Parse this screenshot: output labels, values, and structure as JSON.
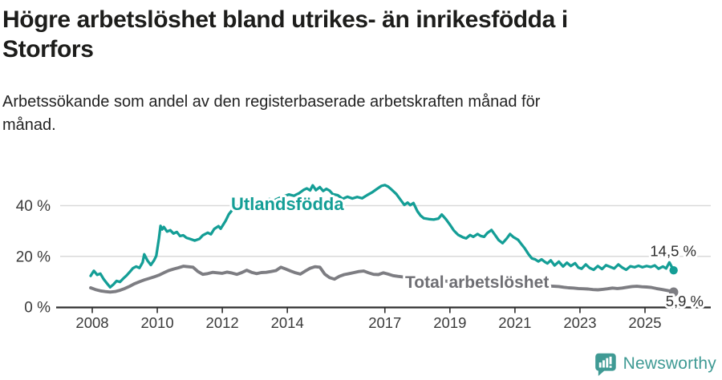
{
  "chart_data": {
    "type": "line",
    "title": "Högre arbetslöshet bland utrikes- än inrikesfödda i\nStorfors",
    "subtitle": "Arbetssökande som andel av den registerbaserade arbetskraften månad för\nmånad.",
    "x_unit": "year (monthly observations)",
    "xlim": [
      2007.7,
      2026.3
    ],
    "ylim": [
      0,
      50
    ],
    "grid": "horizontal-only",
    "legend_position": "inline-labels",
    "xticks": [
      {
        "value": 2008,
        "label": "2008"
      },
      {
        "value": 2010,
        "label": "2010"
      },
      {
        "value": 2012,
        "label": "2012"
      },
      {
        "value": 2014,
        "label": "2014"
      },
      {
        "value": 2017,
        "label": "2017"
      },
      {
        "value": 2019,
        "label": "2019"
      },
      {
        "value": 2021,
        "label": "2021"
      },
      {
        "value": 2023,
        "label": "2023"
      },
      {
        "value": 2025,
        "label": "2025"
      }
    ],
    "yticks": [
      {
        "value": 0,
        "label": "0 %"
      },
      {
        "value": 20,
        "label": "20 %"
      },
      {
        "value": 40,
        "label": "40 %"
      }
    ],
    "grid_values": [
      20,
      40
    ],
    "colors": {
      "accent_teal": "#149e96",
      "line_gray": "#7d7d82",
      "gray_label": "#6f6f74",
      "axis": "#2f2f2f",
      "gridline": "#d9d9d9",
      "tick_text": "#3a3a3a",
      "end_label_text": "#2e2e2e"
    },
    "series": [
      {
        "name": "Utlandsfödda",
        "color": "#149e96",
        "end_label": "14,5 %",
        "end_value": 14.5,
        "points": [
          [
            2007.95,
            12.3
          ],
          [
            2008.05,
            14.3
          ],
          [
            2008.15,
            12.7
          ],
          [
            2008.25,
            13.2
          ],
          [
            2008.35,
            11.0
          ],
          [
            2008.45,
            9.4
          ],
          [
            2008.55,
            7.8
          ],
          [
            2008.65,
            8.9
          ],
          [
            2008.75,
            10.3
          ],
          [
            2008.85,
            9.9
          ],
          [
            2008.95,
            11.2
          ],
          [
            2009.05,
            12.4
          ],
          [
            2009.15,
            13.8
          ],
          [
            2009.25,
            15.3
          ],
          [
            2009.35,
            16.0
          ],
          [
            2009.45,
            15.4
          ],
          [
            2009.55,
            17.6
          ],
          [
            2009.6,
            20.8
          ],
          [
            2009.7,
            18.3
          ],
          [
            2009.8,
            16.6
          ],
          [
            2009.9,
            18.4
          ],
          [
            2009.97,
            20.2
          ],
          [
            2010.05,
            27.0
          ],
          [
            2010.1,
            32.0
          ],
          [
            2010.15,
            30.6
          ],
          [
            2010.2,
            31.6
          ],
          [
            2010.3,
            29.8
          ],
          [
            2010.4,
            30.3
          ],
          [
            2010.5,
            29.0
          ],
          [
            2010.6,
            29.6
          ],
          [
            2010.7,
            28.0
          ],
          [
            2010.8,
            28.3
          ],
          [
            2010.9,
            27.3
          ],
          [
            2011.0,
            26.9
          ],
          [
            2011.15,
            26.2
          ],
          [
            2011.3,
            26.9
          ],
          [
            2011.4,
            28.3
          ],
          [
            2011.55,
            29.3
          ],
          [
            2011.65,
            28.7
          ],
          [
            2011.75,
            30.8
          ],
          [
            2011.88,
            31.9
          ],
          [
            2011.95,
            30.9
          ],
          [
            2012.1,
            34.0
          ],
          [
            2012.2,
            36.6
          ],
          [
            2012.3,
            38.2
          ],
          [
            2012.4,
            39.4
          ],
          [
            2012.55,
            40.2
          ],
          [
            2012.7,
            41.0
          ],
          [
            2012.85,
            40.4
          ],
          [
            2013.0,
            41.6
          ],
          [
            2013.15,
            42.3
          ],
          [
            2013.3,
            41.8
          ],
          [
            2013.45,
            42.6
          ],
          [
            2013.6,
            42.1
          ],
          [
            2013.75,
            43.0
          ],
          [
            2013.9,
            43.7
          ],
          [
            2014.05,
            44.4
          ],
          [
            2014.2,
            43.9
          ],
          [
            2014.35,
            44.8
          ],
          [
            2014.5,
            46.2
          ],
          [
            2014.6,
            46.8
          ],
          [
            2014.7,
            46.0
          ],
          [
            2014.78,
            48.0
          ],
          [
            2014.88,
            46.1
          ],
          [
            2015.0,
            47.3
          ],
          [
            2015.1,
            45.8
          ],
          [
            2015.2,
            46.6
          ],
          [
            2015.3,
            45.9
          ],
          [
            2015.4,
            44.5
          ],
          [
            2015.55,
            44.1
          ],
          [
            2015.7,
            42.7
          ],
          [
            2015.85,
            43.5
          ],
          [
            2016.0,
            42.8
          ],
          [
            2016.15,
            43.4
          ],
          [
            2016.3,
            42.9
          ],
          [
            2016.45,
            44.1
          ],
          [
            2016.6,
            45.2
          ],
          [
            2016.75,
            46.5
          ],
          [
            2016.9,
            47.8
          ],
          [
            2017.0,
            48.1
          ],
          [
            2017.1,
            47.5
          ],
          [
            2017.2,
            46.4
          ],
          [
            2017.35,
            44.6
          ],
          [
            2017.5,
            42.0
          ],
          [
            2017.6,
            40.3
          ],
          [
            2017.7,
            41.2
          ],
          [
            2017.78,
            40.2
          ],
          [
            2017.88,
            41.0
          ],
          [
            2018.0,
            37.8
          ],
          [
            2018.1,
            36.0
          ],
          [
            2018.2,
            35.0
          ],
          [
            2018.35,
            34.7
          ],
          [
            2018.5,
            34.5
          ],
          [
            2018.65,
            34.9
          ],
          [
            2018.75,
            36.5
          ],
          [
            2018.88,
            34.6
          ],
          [
            2019.0,
            32.5
          ],
          [
            2019.12,
            30.2
          ],
          [
            2019.25,
            28.5
          ],
          [
            2019.4,
            27.5
          ],
          [
            2019.5,
            27.1
          ],
          [
            2019.62,
            28.4
          ],
          [
            2019.72,
            27.7
          ],
          [
            2019.85,
            28.8
          ],
          [
            2019.95,
            28.0
          ],
          [
            2020.05,
            27.7
          ],
          [
            2020.15,
            29.2
          ],
          [
            2020.28,
            30.4
          ],
          [
            2020.4,
            28.2
          ],
          [
            2020.5,
            26.4
          ],
          [
            2020.62,
            25.2
          ],
          [
            2020.75,
            27.1
          ],
          [
            2020.85,
            28.8
          ],
          [
            2020.95,
            27.6
          ],
          [
            2021.1,
            26.5
          ],
          [
            2021.2,
            24.8
          ],
          [
            2021.3,
            23.2
          ],
          [
            2021.42,
            20.8
          ],
          [
            2021.52,
            19.2
          ],
          [
            2021.62,
            18.8
          ],
          [
            2021.72,
            18.0
          ],
          [
            2021.82,
            18.8
          ],
          [
            2021.92,
            17.8
          ],
          [
            2022.0,
            17.2
          ],
          [
            2022.1,
            18.4
          ],
          [
            2022.22,
            16.4
          ],
          [
            2022.35,
            17.9
          ],
          [
            2022.48,
            16.0
          ],
          [
            2022.6,
            17.5
          ],
          [
            2022.72,
            16.2
          ],
          [
            2022.85,
            17.3
          ],
          [
            2022.95,
            15.6
          ],
          [
            2023.05,
            15.1
          ],
          [
            2023.18,
            16.8
          ],
          [
            2023.3,
            15.4
          ],
          [
            2023.42,
            14.7
          ],
          [
            2023.55,
            16.2
          ],
          [
            2023.68,
            15.0
          ],
          [
            2023.8,
            16.5
          ],
          [
            2023.92,
            15.9
          ],
          [
            2024.05,
            15.2
          ],
          [
            2024.18,
            16.8
          ],
          [
            2024.3,
            15.6
          ],
          [
            2024.42,
            14.7
          ],
          [
            2024.55,
            16.1
          ],
          [
            2024.68,
            15.7
          ],
          [
            2024.8,
            16.3
          ],
          [
            2024.92,
            15.7
          ],
          [
            2025.05,
            16.2
          ],
          [
            2025.18,
            15.8
          ],
          [
            2025.3,
            16.4
          ],
          [
            2025.42,
            15.1
          ],
          [
            2025.55,
            16.0
          ],
          [
            2025.65,
            15.2
          ],
          [
            2025.75,
            17.6
          ],
          [
            2025.88,
            14.5
          ]
        ]
      },
      {
        "name": "Total arbetslöshet",
        "color": "#7d7d82",
        "label_color": "#6f6f74",
        "end_label": "5,9 %",
        "end_value": 5.9,
        "points": [
          [
            2007.95,
            7.6
          ],
          [
            2008.1,
            6.9
          ],
          [
            2008.25,
            6.4
          ],
          [
            2008.4,
            6.1
          ],
          [
            2008.55,
            5.9
          ],
          [
            2008.7,
            6.1
          ],
          [
            2008.85,
            6.6
          ],
          [
            2009.0,
            7.3
          ],
          [
            2009.15,
            8.2
          ],
          [
            2009.3,
            9.2
          ],
          [
            2009.45,
            10.0
          ],
          [
            2009.6,
            10.7
          ],
          [
            2009.75,
            11.3
          ],
          [
            2009.9,
            11.9
          ],
          [
            2010.05,
            12.6
          ],
          [
            2010.2,
            13.5
          ],
          [
            2010.35,
            14.4
          ],
          [
            2010.5,
            15.0
          ],
          [
            2010.65,
            15.5
          ],
          [
            2010.8,
            16.1
          ],
          [
            2010.95,
            15.9
          ],
          [
            2011.1,
            15.7
          ],
          [
            2011.25,
            14.0
          ],
          [
            2011.4,
            12.9
          ],
          [
            2011.55,
            13.2
          ],
          [
            2011.7,
            13.7
          ],
          [
            2011.85,
            13.5
          ],
          [
            2012.0,
            13.3
          ],
          [
            2012.15,
            13.8
          ],
          [
            2012.3,
            13.4
          ],
          [
            2012.45,
            12.9
          ],
          [
            2012.6,
            13.6
          ],
          [
            2012.75,
            14.5
          ],
          [
            2012.9,
            13.7
          ],
          [
            2013.05,
            13.2
          ],
          [
            2013.2,
            13.6
          ],
          [
            2013.35,
            13.7
          ],
          [
            2013.5,
            14.0
          ],
          [
            2013.65,
            14.4
          ],
          [
            2013.8,
            15.7
          ],
          [
            2013.95,
            15.0
          ],
          [
            2014.1,
            14.2
          ],
          [
            2014.25,
            13.5
          ],
          [
            2014.4,
            13.0
          ],
          [
            2014.55,
            14.2
          ],
          [
            2014.7,
            15.3
          ],
          [
            2014.85,
            15.9
          ],
          [
            2015.0,
            15.7
          ],
          [
            2015.15,
            13.0
          ],
          [
            2015.3,
            11.6
          ],
          [
            2015.45,
            11.0
          ],
          [
            2015.6,
            12.1
          ],
          [
            2015.75,
            12.8
          ],
          [
            2015.9,
            13.2
          ],
          [
            2016.05,
            13.6
          ],
          [
            2016.2,
            14.0
          ],
          [
            2016.35,
            14.2
          ],
          [
            2016.5,
            13.5
          ],
          [
            2016.65,
            12.9
          ],
          [
            2016.8,
            12.8
          ],
          [
            2016.95,
            13.5
          ],
          [
            2017.1,
            13.0
          ],
          [
            2017.25,
            12.4
          ],
          [
            2017.4,
            12.1
          ],
          [
            2017.6,
            11.8
          ],
          [
            2017.85,
            11.4
          ],
          [
            2018.1,
            11.1
          ],
          [
            2018.4,
            10.7
          ],
          [
            2018.7,
            10.4
          ],
          [
            2019.0,
            10.1
          ],
          [
            2019.3,
            9.9
          ],
          [
            2019.6,
            9.7
          ],
          [
            2019.9,
            9.6
          ],
          [
            2020.2,
            10.0
          ],
          [
            2020.45,
            10.4
          ],
          [
            2020.7,
            10.1
          ],
          [
            2021.0,
            9.6
          ],
          [
            2021.3,
            9.1
          ],
          [
            2021.6,
            8.7
          ],
          [
            2021.9,
            8.4
          ],
          [
            2022.2,
            8.2
          ],
          [
            2022.35,
            8.1
          ],
          [
            2022.5,
            7.8
          ],
          [
            2022.65,
            7.6
          ],
          [
            2022.8,
            7.5
          ],
          [
            2022.95,
            7.3
          ],
          [
            2023.1,
            7.2
          ],
          [
            2023.25,
            7.1
          ],
          [
            2023.4,
            6.9
          ],
          [
            2023.55,
            6.8
          ],
          [
            2023.7,
            7.0
          ],
          [
            2023.85,
            7.2
          ],
          [
            2024.0,
            7.5
          ],
          [
            2024.15,
            7.3
          ],
          [
            2024.3,
            7.5
          ],
          [
            2024.45,
            7.8
          ],
          [
            2024.6,
            8.1
          ],
          [
            2024.75,
            8.2
          ],
          [
            2024.9,
            8.0
          ],
          [
            2025.05,
            7.9
          ],
          [
            2025.2,
            7.7
          ],
          [
            2025.35,
            7.3
          ],
          [
            2025.5,
            7.0
          ],
          [
            2025.65,
            6.6
          ],
          [
            2025.78,
            6.3
          ],
          [
            2025.88,
            5.9
          ]
        ]
      }
    ]
  },
  "footer": {
    "logo_text": "Newsworthy",
    "logo_color": "#3f9a94"
  }
}
